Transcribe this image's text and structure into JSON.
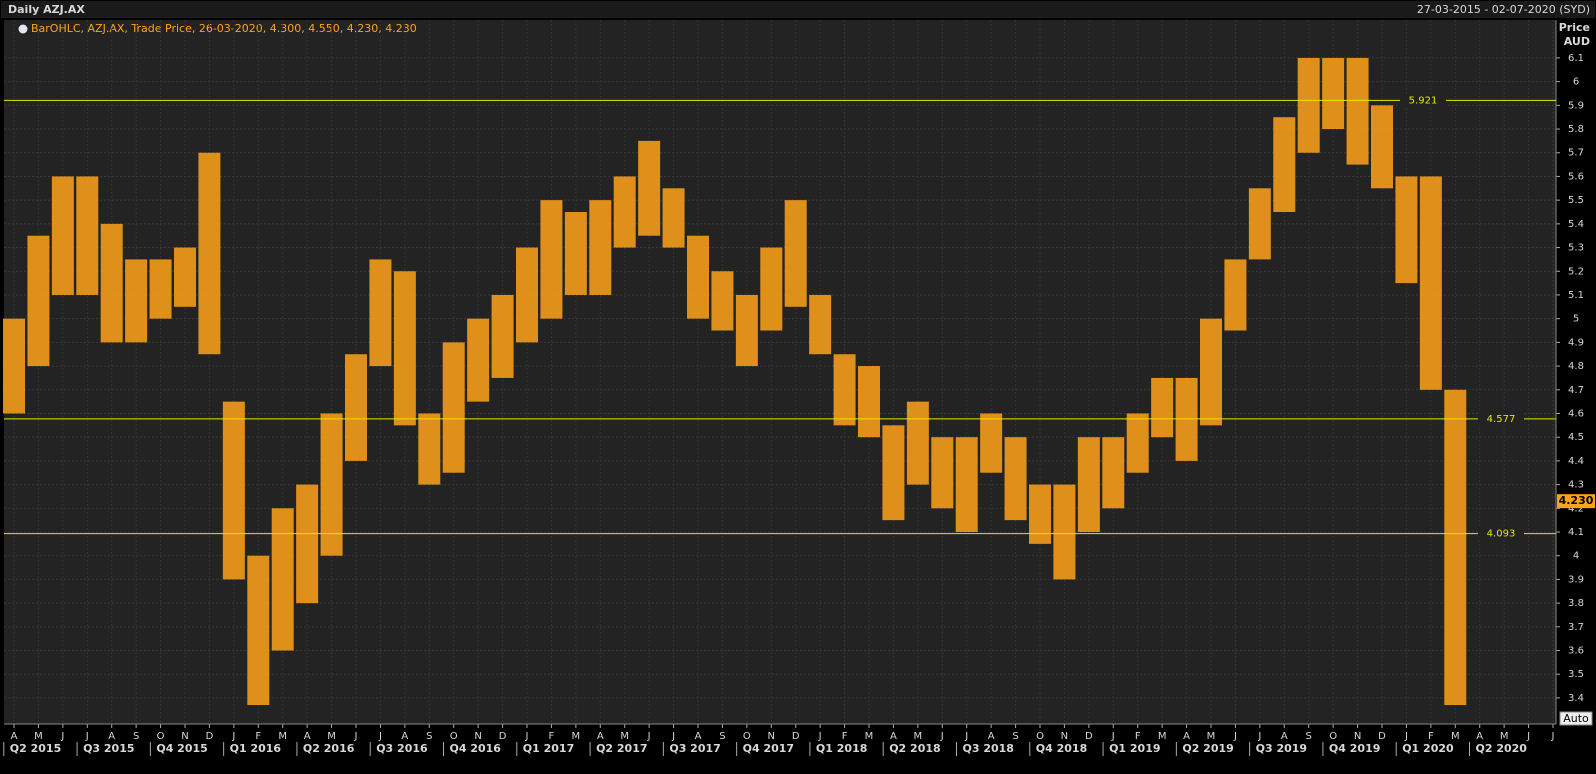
{
  "chart_data": {
    "type": "range",
    "title": "Daily AZJ.AX",
    "date_range": "27-03-2015 - 02-07-2020 (SYD)",
    "legend": "BarOHLC, AZJ.AX, Trade Price, 26-03-2020, 4.300, 4.550, 4.230, 4.230",
    "y_label": "Price",
    "y_unit": "AUD",
    "scale_button": "Auto",
    "color": "#ffa31a",
    "categories": [
      "A",
      "M",
      "J",
      "J",
      "A",
      "S",
      "O",
      "N",
      "D",
      "J",
      "F",
      "M",
      "A",
      "M",
      "J",
      "J",
      "A",
      "S",
      "O",
      "N",
      "D",
      "J",
      "F",
      "M",
      "A",
      "M",
      "J",
      "J",
      "A",
      "S",
      "O",
      "N",
      "D",
      "J",
      "F",
      "M",
      "A",
      "M",
      "J",
      "J",
      "A",
      "S",
      "O",
      "N",
      "D",
      "J",
      "F",
      "M",
      "A",
      "M",
      "J",
      "J",
      "A",
      "S",
      "O",
      "N",
      "D",
      "J",
      "F",
      "M",
      "A",
      "M",
      "J",
      "J"
    ],
    "quarters": [
      "Q2 2015",
      "Q3 2015",
      "Q4 2015",
      "Q1 2016",
      "Q2 2016",
      "Q3 2016",
      "Q4 2016",
      "Q1 2017",
      "Q2 2017",
      "Q3 2017",
      "Q4 2017",
      "Q1 2018",
      "Q2 2018",
      "Q3 2018",
      "Q4 2018",
      "Q1 2019",
      "Q2 2019",
      "Q3 2019",
      "Q4 2019",
      "Q1 2020",
      "Q2 2020"
    ],
    "low": [
      4.6,
      4.8,
      5.1,
      5.1,
      4.9,
      4.9,
      5.0,
      5.05,
      4.85,
      3.9,
      3.37,
      3.6,
      3.8,
      4.0,
      4.4,
      4.8,
      4.55,
      4.3,
      4.35,
      4.65,
      4.75,
      4.9,
      5.0,
      5.1,
      5.1,
      5.3,
      5.35,
      5.3,
      5.0,
      4.95,
      4.8,
      4.95,
      5.05,
      4.85,
      4.55,
      4.5,
      4.15,
      4.3,
      4.2,
      4.1,
      4.35,
      4.15,
      4.05,
      3.9,
      4.1,
      4.2,
      4.35,
      4.5,
      4.4,
      4.55,
      4.95,
      5.25,
      5.45,
      5.7,
      5.8,
      5.65,
      5.55,
      5.15,
      4.7,
      3.37,
      null,
      null,
      null,
      null
    ],
    "high": [
      5.0,
      5.35,
      5.6,
      5.6,
      5.4,
      5.25,
      5.25,
      5.3,
      5.7,
      4.65,
      4.0,
      4.2,
      4.3,
      4.6,
      4.85,
      5.25,
      5.2,
      4.6,
      4.9,
      5.0,
      5.1,
      5.3,
      5.5,
      5.45,
      5.5,
      5.6,
      5.75,
      5.55,
      5.35,
      5.2,
      5.1,
      5.3,
      5.5,
      5.1,
      4.85,
      4.8,
      4.55,
      4.65,
      4.5,
      4.5,
      4.6,
      4.5,
      4.3,
      4.3,
      4.5,
      4.5,
      4.6,
      4.75,
      4.75,
      5.0,
      5.25,
      5.55,
      5.85,
      6.1,
      6.1,
      6.1,
      5.9,
      5.6,
      5.6,
      4.7,
      null,
      null,
      null,
      null
    ],
    "ylim": [
      3.29,
      6.26
    ],
    "yticks": [
      3.4,
      3.5,
      3.6,
      3.7,
      3.8,
      3.9,
      4,
      4.1,
      4.2,
      4.3,
      4.4,
      4.5,
      4.6,
      4.7,
      4.8,
      4.9,
      5,
      5.1,
      5.2,
      5.3,
      5.4,
      5.5,
      5.6,
      5.7,
      5.8,
      5.9,
      6,
      6.1
    ],
    "reference_lines": [
      5.921,
      4.577,
      4.093
    ],
    "reference_color": "#e6e600",
    "last_price": {
      "value": 4.23,
      "label": "4.230"
    },
    "grid": true
  }
}
